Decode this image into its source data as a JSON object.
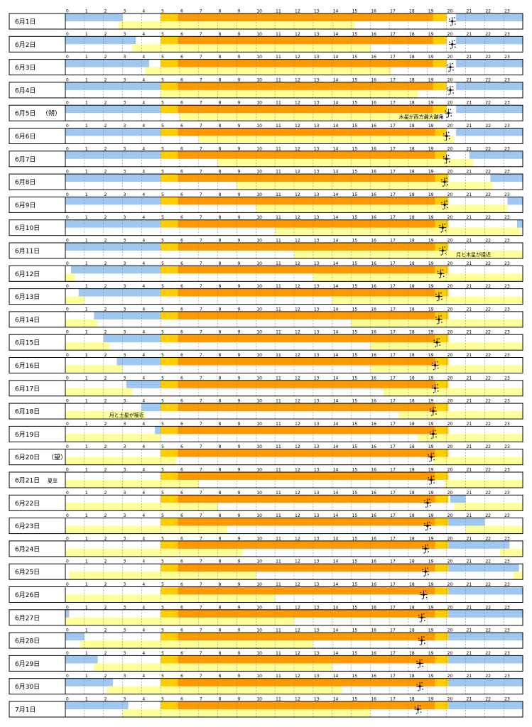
{
  "chart_data": {
    "type": "timeline",
    "hour_ticks": [
      "0",
      "1",
      "2",
      "3",
      "4",
      "5",
      "6",
      "7",
      "8",
      "9",
      "10",
      "11",
      "12",
      "13",
      "14",
      "15",
      "16",
      "17",
      "18",
      "19",
      "20",
      "21",
      "22",
      "23"
    ],
    "legend": [],
    "colors": {
      "moon_visible": "#9ec8f0",
      "moon_rise_set": "#ffff99",
      "twilight": "#ffcc00",
      "sun_up": "#ff9900",
      "frame": "#000000",
      "hour_line": "#888888"
    },
    "rows": [
      {
        "date": "6月1日",
        "note": "",
        "sky": [
          [
            0,
            3
          ],
          [
            20.5,
            24
          ]
        ],
        "low": [
          [
            2.8,
            15.2
          ]
        ],
        "star": 20.3,
        "dawn": 5.0,
        "rise": 5.9,
        "set": 19.3,
        "dusk": 20.0
      },
      {
        "date": "6月2日",
        "note": "",
        "sky": [
          [
            0,
            3.7
          ],
          [
            20.5,
            24
          ]
        ],
        "low": [
          [
            3.5,
            16
          ]
        ],
        "star": 20.3,
        "dawn": 5.0,
        "rise": 5.9,
        "set": 19.3,
        "dusk": 20.0
      },
      {
        "date": "6月3日",
        "note": "",
        "sky": [
          [
            0,
            4.4
          ],
          [
            20.5,
            24
          ]
        ],
        "low": [
          [
            4.2,
            17.1
          ]
        ],
        "star": 20.2,
        "dawn": 5.0,
        "rise": 5.9,
        "set": 19.3,
        "dusk": 20.0
      },
      {
        "date": "6月4日",
        "note": "",
        "sky": [
          [
            0,
            5
          ],
          [
            20.5,
            24
          ]
        ],
        "low": [
          [
            5,
            18.5
          ]
        ],
        "star": 20.2,
        "dawn": 5.0,
        "rise": 5.9,
        "set": 19.3,
        "dusk": 20.0
      },
      {
        "date": "6月5日",
        "note": "（朔）",
        "sky": [
          [
            0,
            5
          ],
          [
            20.5,
            24
          ]
        ],
        "low": [
          [
            6,
            19.6
          ]
        ],
        "star": 20.1,
        "dawn": 5.0,
        "rise": 5.9,
        "set": 19.3,
        "dusk": 20.0
      },
      {
        "date": "6月6日",
        "note": "",
        "sky": [
          [
            0,
            5
          ],
          [
            20.5,
            24
          ]
        ],
        "low": [
          [
            7,
            20.4
          ]
        ],
        "star": 20.0,
        "dawn": 5.0,
        "rise": 5.9,
        "set": 19.4,
        "dusk": 20.0
      },
      {
        "date": "6月7日",
        "note": "",
        "sky": [
          [
            0,
            5
          ],
          [
            21.2,
            24
          ]
        ],
        "low": [
          [
            8,
            21.4
          ]
        ],
        "star": 20.0,
        "dawn": 5.0,
        "rise": 5.9,
        "set": 19.4,
        "dusk": 20.0
      },
      {
        "date": "6月8日",
        "note": "",
        "sky": [
          [
            0,
            5
          ],
          [
            22.3,
            24
          ]
        ],
        "low": [
          [
            9,
            22.4
          ]
        ],
        "star": 19.9,
        "dawn": 5.0,
        "rise": 5.9,
        "set": 19.4,
        "dusk": 20.1
      },
      {
        "date": "6月9日",
        "note": "",
        "sky": [
          [
            0,
            5
          ],
          [
            23.2,
            24
          ]
        ],
        "low": [
          [
            10,
            23.2
          ]
        ],
        "star": 19.9,
        "dawn": 5.0,
        "rise": 5.9,
        "set": 19.4,
        "dusk": 20.1
      },
      {
        "date": "6月10日",
        "note": "",
        "sky": [
          [
            0,
            5
          ],
          [
            23.7,
            24
          ]
        ],
        "low": [
          [
            11,
            23.9
          ]
        ],
        "star": 19.8,
        "dawn": 5.0,
        "rise": 5.9,
        "set": 19.4,
        "dusk": 20.1
      },
      {
        "date": "6月11日",
        "note": "",
        "sky": [
          [
            0,
            5
          ]
        ],
        "low": [
          [
            12,
            24
          ]
        ],
        "star": 19.8,
        "dawn": 5.0,
        "rise": 5.9,
        "set": 19.4,
        "dusk": 20.1
      },
      {
        "date": "6月12日",
        "note": "",
        "sky": [
          [
            0.3,
            5
          ]
        ],
        "low": [
          [
            0,
            0.5
          ],
          [
            13,
            24
          ]
        ],
        "star": 19.7,
        "dawn": 5.0,
        "rise": 5.9,
        "set": 19.4,
        "dusk": 20.1
      },
      {
        "date": "6月13日",
        "note": "",
        "sky": [
          [
            0.7,
            5
          ]
        ],
        "low": [
          [
            0,
            1
          ],
          [
            14,
            24
          ]
        ],
        "star": 19.6,
        "dawn": 5.0,
        "rise": 5.9,
        "set": 19.4,
        "dusk": 20.1
      },
      {
        "date": "6月14日",
        "note": "",
        "sky": [
          [
            1.5,
            5
          ]
        ],
        "low": [
          [
            0,
            1.7
          ],
          [
            15,
            24
          ]
        ],
        "star": 19.6,
        "dawn": 5.0,
        "rise": 5.9,
        "set": 19.4,
        "dusk": 20.1
      },
      {
        "date": "6月15日",
        "note": "",
        "sky": [
          [
            2,
            5
          ]
        ],
        "low": [
          [
            0,
            2.3
          ],
          [
            16,
            24
          ]
        ],
        "star": 19.5,
        "dawn": 5.0,
        "rise": 5.9,
        "set": 19.4,
        "dusk": 20.1
      },
      {
        "date": "6月16日",
        "note": "",
        "sky": [
          [
            2.7,
            5
          ]
        ],
        "low": [
          [
            0,
            3
          ],
          [
            16,
            24
          ]
        ],
        "star": 19.4,
        "dawn": 5.0,
        "rise": 5.9,
        "set": 19.4,
        "dusk": 20.1
      },
      {
        "date": "6月17日",
        "note": "",
        "sky": [
          [
            3.2,
            5
          ]
        ],
        "low": [
          [
            0,
            3.5
          ],
          [
            16.7,
            24
          ]
        ],
        "star": 19.4,
        "dawn": 5.0,
        "rise": 5.9,
        "set": 19.4,
        "dusk": 20.1
      },
      {
        "date": "6月18日",
        "note": "",
        "sky": [
          [
            4,
            5
          ]
        ],
        "low": [
          [
            0,
            4.2
          ],
          [
            17.5,
            24
          ]
        ],
        "star": 19.3,
        "dawn": 5.0,
        "rise": 5.9,
        "set": 19.4,
        "dusk": 20.1
      },
      {
        "date": "6月19日",
        "note": "",
        "sky": [
          [
            4.7,
            5
          ]
        ],
        "low": [
          [
            0,
            5
          ],
          [
            18.5,
            24
          ]
        ],
        "star": 19.3,
        "dawn": 5.0,
        "rise": 5.9,
        "set": 19.4,
        "dusk": 20.1
      },
      {
        "date": "6月20日",
        "note": "（望）",
        "sky": [],
        "low": [
          [
            0,
            5.8
          ],
          [
            19.3,
            24
          ]
        ],
        "star": 19.2,
        "dawn": 5.0,
        "rise": 5.9,
        "set": 19.4,
        "dusk": 20.1
      },
      {
        "date": "6月21日",
        "note": "夏至",
        "sky": [],
        "low": [
          [
            0,
            7
          ],
          [
            19.9,
            24
          ]
        ],
        "star": 19.2,
        "dawn": 5.0,
        "rise": 5.9,
        "set": 19.4,
        "dusk": 20.1
      },
      {
        "date": "6月22日",
        "note": "",
        "sky": [
          [
            20.2,
            21
          ]
        ],
        "low": [
          [
            0,
            8
          ],
          [
            20.4,
            24
          ]
        ],
        "star": 19.0,
        "dawn": 5.0,
        "rise": 5.9,
        "set": 19.4,
        "dusk": 20.1
      },
      {
        "date": "6月23日",
        "note": "",
        "sky": [
          [
            20.1,
            22
          ]
        ],
        "low": [
          [
            0,
            8.5
          ],
          [
            21,
            24
          ]
        ],
        "star": 19.0,
        "dawn": 5.0,
        "rise": 5.9,
        "set": 19.4,
        "dusk": 20.1
      },
      {
        "date": "6月24日",
        "note": "",
        "sky": [
          [
            20.1,
            23.3
          ]
        ],
        "low": [
          [
            0,
            9.3
          ],
          [
            22.8,
            24
          ]
        ],
        "star": 18.9,
        "dawn": 5.0,
        "rise": 5.9,
        "set": 19.4,
        "dusk": 20.1
      },
      {
        "date": "6月25日",
        "note": "",
        "sky": [
          [
            20.1,
            23.8
          ]
        ],
        "low": [
          [
            0.2,
            10
          ],
          [
            23.5,
            24
          ]
        ],
        "star": 18.9,
        "dawn": 5.0,
        "rise": 5.9,
        "set": 19.4,
        "dusk": 20.1
      },
      {
        "date": "6月26日",
        "note": "",
        "sky": [
          [
            20.1,
            24
          ]
        ],
        "low": [
          [
            0,
            11
          ]
        ],
        "star": 18.8,
        "dawn": 5.0,
        "rise": 5.9,
        "set": 19.4,
        "dusk": 20.1
      },
      {
        "date": "6月27日",
        "note": "",
        "sky": [
          [
            0,
            0.2
          ],
          [
            20.1,
            24
          ]
        ],
        "low": [
          [
            0,
            12
          ]
        ],
        "star": 18.7,
        "dawn": 5.0,
        "rise": 5.9,
        "set": 19.4,
        "dusk": 20.1
      },
      {
        "date": "6月28日",
        "note": "",
        "sky": [
          [
            0,
            1
          ],
          [
            20.1,
            24
          ]
        ],
        "low": [
          [
            0.8,
            13
          ]
        ],
        "star": 18.7,
        "dawn": 5.0,
        "rise": 5.9,
        "set": 19.4,
        "dusk": 20.1
      },
      {
        "date": "6月29日",
        "note": "",
        "sky": [
          [
            0,
            1.7
          ],
          [
            20.1,
            24
          ]
        ],
        "low": [
          [
            1.5,
            14
          ]
        ],
        "star": 18.6,
        "dawn": 5.0,
        "rise": 5.9,
        "set": 19.4,
        "dusk": 20.1
      },
      {
        "date": "6月30日",
        "note": "",
        "sky": [
          [
            0,
            2.5
          ],
          [
            20.1,
            24
          ]
        ],
        "low": [
          [
            2.2,
            14.5
          ]
        ],
        "star": 18.6,
        "dawn": 5.0,
        "rise": 5.9,
        "set": 19.4,
        "dusk": 20.1
      },
      {
        "date": "7月1日",
        "note": "",
        "sky": [
          [
            0,
            3.3
          ],
          [
            20.1,
            24
          ]
        ],
        "low": [
          [
            3,
            16
          ]
        ],
        "star": 18.5,
        "dawn": 5.0,
        "rise": 5.9,
        "set": 19.4,
        "dusk": 20.1
      }
    ],
    "annotations": [
      {
        "row": 4,
        "text": "木星が西方最大離角",
        "hour": 17.5
      },
      {
        "row": 10,
        "text": "月と木星が接近",
        "hour": 20.5
      },
      {
        "row": 17,
        "text": "月と土星が接近",
        "hour": 2.3
      }
    ]
  }
}
